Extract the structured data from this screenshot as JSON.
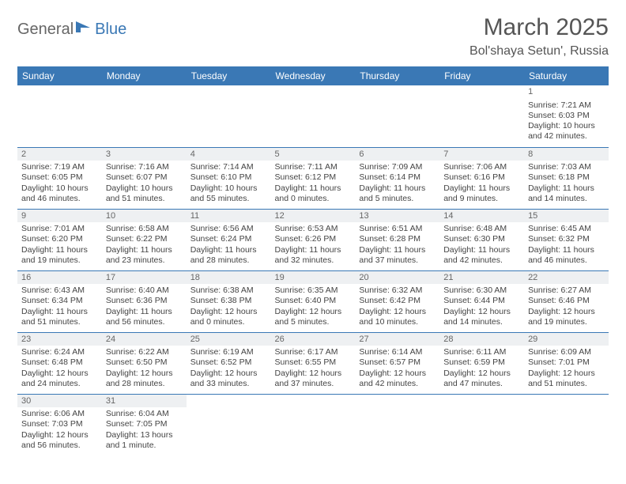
{
  "logo": {
    "text1": "General",
    "text2": "Blue"
  },
  "title": "March 2025",
  "location": "Bol'shaya Setun', Russia",
  "colors": {
    "header_bg": "#3a78b5",
    "header_text": "#ffffff",
    "daynum_bg": "#eef0f2",
    "border": "#3a78b5"
  },
  "day_names": [
    "Sunday",
    "Monday",
    "Tuesday",
    "Wednesday",
    "Thursday",
    "Friday",
    "Saturday"
  ],
  "weeks": [
    [
      null,
      null,
      null,
      null,
      null,
      null,
      {
        "n": "1",
        "sr": "Sunrise: 7:21 AM",
        "ss": "Sunset: 6:03 PM",
        "dl": "Daylight: 10 hours and 42 minutes."
      }
    ],
    [
      {
        "n": "2",
        "sr": "Sunrise: 7:19 AM",
        "ss": "Sunset: 6:05 PM",
        "dl": "Daylight: 10 hours and 46 minutes."
      },
      {
        "n": "3",
        "sr": "Sunrise: 7:16 AM",
        "ss": "Sunset: 6:07 PM",
        "dl": "Daylight: 10 hours and 51 minutes."
      },
      {
        "n": "4",
        "sr": "Sunrise: 7:14 AM",
        "ss": "Sunset: 6:10 PM",
        "dl": "Daylight: 10 hours and 55 minutes."
      },
      {
        "n": "5",
        "sr": "Sunrise: 7:11 AM",
        "ss": "Sunset: 6:12 PM",
        "dl": "Daylight: 11 hours and 0 minutes."
      },
      {
        "n": "6",
        "sr": "Sunrise: 7:09 AM",
        "ss": "Sunset: 6:14 PM",
        "dl": "Daylight: 11 hours and 5 minutes."
      },
      {
        "n": "7",
        "sr": "Sunrise: 7:06 AM",
        "ss": "Sunset: 6:16 PM",
        "dl": "Daylight: 11 hours and 9 minutes."
      },
      {
        "n": "8",
        "sr": "Sunrise: 7:03 AM",
        "ss": "Sunset: 6:18 PM",
        "dl": "Daylight: 11 hours and 14 minutes."
      }
    ],
    [
      {
        "n": "9",
        "sr": "Sunrise: 7:01 AM",
        "ss": "Sunset: 6:20 PM",
        "dl": "Daylight: 11 hours and 19 minutes."
      },
      {
        "n": "10",
        "sr": "Sunrise: 6:58 AM",
        "ss": "Sunset: 6:22 PM",
        "dl": "Daylight: 11 hours and 23 minutes."
      },
      {
        "n": "11",
        "sr": "Sunrise: 6:56 AM",
        "ss": "Sunset: 6:24 PM",
        "dl": "Daylight: 11 hours and 28 minutes."
      },
      {
        "n": "12",
        "sr": "Sunrise: 6:53 AM",
        "ss": "Sunset: 6:26 PM",
        "dl": "Daylight: 11 hours and 32 minutes."
      },
      {
        "n": "13",
        "sr": "Sunrise: 6:51 AM",
        "ss": "Sunset: 6:28 PM",
        "dl": "Daylight: 11 hours and 37 minutes."
      },
      {
        "n": "14",
        "sr": "Sunrise: 6:48 AM",
        "ss": "Sunset: 6:30 PM",
        "dl": "Daylight: 11 hours and 42 minutes."
      },
      {
        "n": "15",
        "sr": "Sunrise: 6:45 AM",
        "ss": "Sunset: 6:32 PM",
        "dl": "Daylight: 11 hours and 46 minutes."
      }
    ],
    [
      {
        "n": "16",
        "sr": "Sunrise: 6:43 AM",
        "ss": "Sunset: 6:34 PM",
        "dl": "Daylight: 11 hours and 51 minutes."
      },
      {
        "n": "17",
        "sr": "Sunrise: 6:40 AM",
        "ss": "Sunset: 6:36 PM",
        "dl": "Daylight: 11 hours and 56 minutes."
      },
      {
        "n": "18",
        "sr": "Sunrise: 6:38 AM",
        "ss": "Sunset: 6:38 PM",
        "dl": "Daylight: 12 hours and 0 minutes."
      },
      {
        "n": "19",
        "sr": "Sunrise: 6:35 AM",
        "ss": "Sunset: 6:40 PM",
        "dl": "Daylight: 12 hours and 5 minutes."
      },
      {
        "n": "20",
        "sr": "Sunrise: 6:32 AM",
        "ss": "Sunset: 6:42 PM",
        "dl": "Daylight: 12 hours and 10 minutes."
      },
      {
        "n": "21",
        "sr": "Sunrise: 6:30 AM",
        "ss": "Sunset: 6:44 PM",
        "dl": "Daylight: 12 hours and 14 minutes."
      },
      {
        "n": "22",
        "sr": "Sunrise: 6:27 AM",
        "ss": "Sunset: 6:46 PM",
        "dl": "Daylight: 12 hours and 19 minutes."
      }
    ],
    [
      {
        "n": "23",
        "sr": "Sunrise: 6:24 AM",
        "ss": "Sunset: 6:48 PM",
        "dl": "Daylight: 12 hours and 24 minutes."
      },
      {
        "n": "24",
        "sr": "Sunrise: 6:22 AM",
        "ss": "Sunset: 6:50 PM",
        "dl": "Daylight: 12 hours and 28 minutes."
      },
      {
        "n": "25",
        "sr": "Sunrise: 6:19 AM",
        "ss": "Sunset: 6:52 PM",
        "dl": "Daylight: 12 hours and 33 minutes."
      },
      {
        "n": "26",
        "sr": "Sunrise: 6:17 AM",
        "ss": "Sunset: 6:55 PM",
        "dl": "Daylight: 12 hours and 37 minutes."
      },
      {
        "n": "27",
        "sr": "Sunrise: 6:14 AM",
        "ss": "Sunset: 6:57 PM",
        "dl": "Daylight: 12 hours and 42 minutes."
      },
      {
        "n": "28",
        "sr": "Sunrise: 6:11 AM",
        "ss": "Sunset: 6:59 PM",
        "dl": "Daylight: 12 hours and 47 minutes."
      },
      {
        "n": "29",
        "sr": "Sunrise: 6:09 AM",
        "ss": "Sunset: 7:01 PM",
        "dl": "Daylight: 12 hours and 51 minutes."
      }
    ],
    [
      {
        "n": "30",
        "sr": "Sunrise: 6:06 AM",
        "ss": "Sunset: 7:03 PM",
        "dl": "Daylight: 12 hours and 56 minutes."
      },
      {
        "n": "31",
        "sr": "Sunrise: 6:04 AM",
        "ss": "Sunset: 7:05 PM",
        "dl": "Daylight: 13 hours and 1 minute."
      },
      null,
      null,
      null,
      null,
      null
    ]
  ]
}
